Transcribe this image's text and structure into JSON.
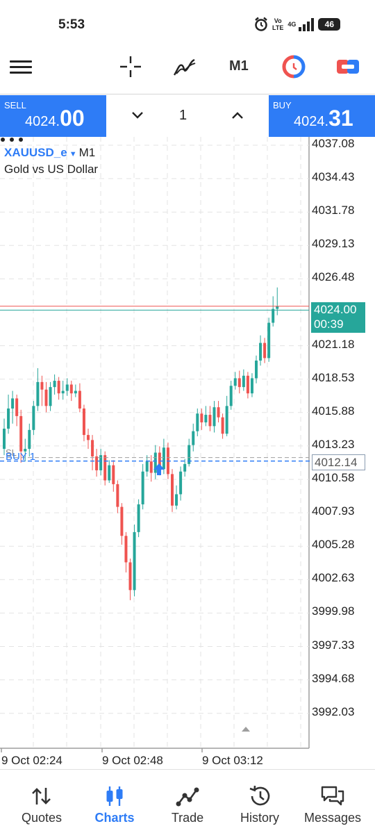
{
  "status_bar": {
    "time": "5:53",
    "volte": "Vo\nLTE",
    "network": "4G",
    "battery": "46"
  },
  "toolbar": {
    "timeframe": "M1",
    "icons": [
      "menu-icon",
      "crosshair-icon",
      "indicators-icon",
      "timeframe",
      "one-click-trading-icon",
      "trade-panel-icon"
    ]
  },
  "trade_panel": {
    "sell_label": "SELL",
    "sell_price_main": "4024.",
    "sell_price_big": "00",
    "buy_label": "BUY",
    "buy_price_main": "4024.",
    "buy_price_big": "31",
    "lot": "1"
  },
  "chart": {
    "symbol": "XAUUSD_e",
    "timeframe": "M1",
    "description": "Gold vs US Dollar",
    "price_labels": [
      "4037.08",
      "4034.43",
      "4031.78",
      "4029.13",
      "4026.48",
      "4021.18",
      "4018.53",
      "4015.88",
      "4013.23",
      "4010.58",
      "4007.93",
      "4005.28",
      "4002.63",
      "3999.98",
      "3997.33",
      "3994.68",
      "3992.03"
    ],
    "time_labels": [
      "9 Oct 02:24",
      "9 Oct 02:48",
      "9 Oct 03:12"
    ],
    "bid_price": "4024.00",
    "bar_countdown": "00:39",
    "order_price": "4012.14",
    "order_label": "BUY 1",
    "sl_label": "SL",
    "colors": {
      "bull": "#26a69a",
      "bear": "#ef5350",
      "accent": "#2e7cf6",
      "ask_line": "#ef5350",
      "bid_line": "#26a69a"
    }
  },
  "bottom_nav": {
    "items": [
      {
        "label": "Quotes",
        "icon": "quotes-icon",
        "active": false
      },
      {
        "label": "Charts",
        "icon": "charts-icon",
        "active": true
      },
      {
        "label": "Trade",
        "icon": "trade-icon",
        "active": false
      },
      {
        "label": "History",
        "icon": "history-icon",
        "active": false
      },
      {
        "label": "Messages",
        "icon": "messages-icon",
        "active": false
      }
    ]
  }
}
